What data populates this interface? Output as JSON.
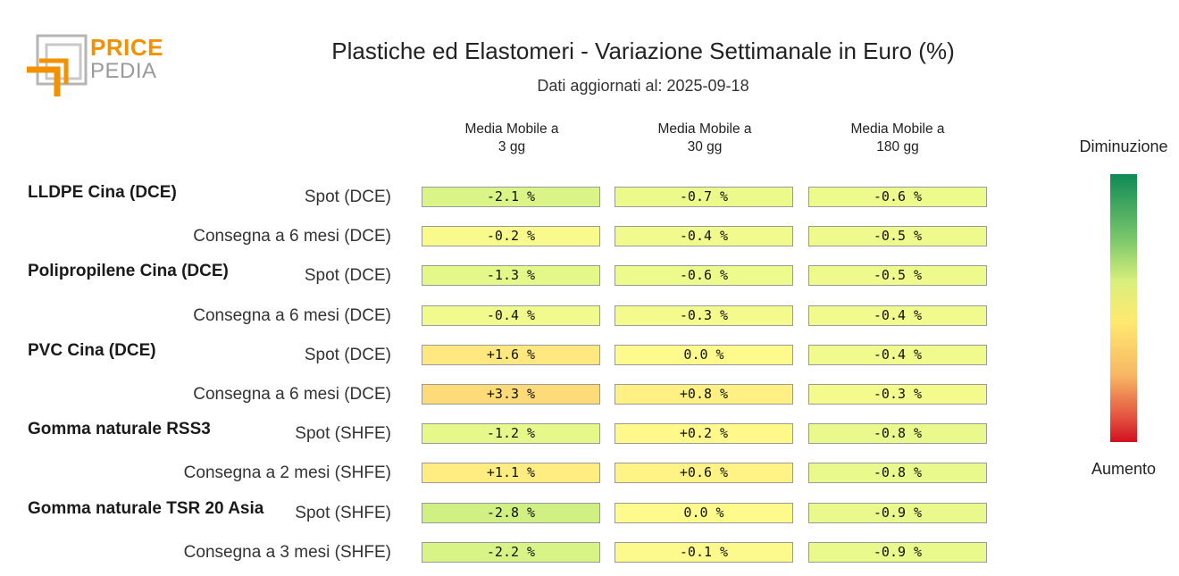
{
  "logo": {
    "line1": "PRICE",
    "line2": "PEDIA",
    "brand_color": "#f39200"
  },
  "chart_data": {
    "type": "table",
    "title": "Plastiche ed Elastomeri - Variazione Settimanale in Euro (%)",
    "subtitle": "Dati aggiornati al: 2025-09-18",
    "columns": [
      {
        "line1": "Media Mobile a",
        "line2": "3 gg"
      },
      {
        "line1": "Media Mobile a",
        "line2": "30 gg"
      },
      {
        "line1": "Media Mobile a",
        "line2": "180 gg"
      }
    ],
    "groups": [
      {
        "name": "LLDPE Cina (DCE)",
        "rows": [
          {
            "label": "Spot (DCE)",
            "values": [
              -2.1,
              -0.7,
              -0.6
            ],
            "texts": [
              "-2.1 %",
              "-0.7 %",
              "-0.6 %"
            ]
          },
          {
            "label": "Consegna a 6 mesi (DCE)",
            "values": [
              -0.2,
              -0.4,
              -0.5
            ],
            "texts": [
              "-0.2 %",
              "-0.4 %",
              "-0.5 %"
            ]
          }
        ]
      },
      {
        "name": "Polipropilene Cina (DCE)",
        "rows": [
          {
            "label": "Spot (DCE)",
            "values": [
              -1.3,
              -0.6,
              -0.5
            ],
            "texts": [
              "-1.3 %",
              "-0.6 %",
              "-0.5 %"
            ]
          },
          {
            "label": "Consegna a 6 mesi (DCE)",
            "values": [
              -0.4,
              -0.3,
              -0.4
            ],
            "texts": [
              "-0.4 %",
              "-0.3 %",
              "-0.4 %"
            ]
          }
        ]
      },
      {
        "name": "PVC Cina (DCE)",
        "rows": [
          {
            "label": "Spot (DCE)",
            "values": [
              1.6,
              0.0,
              -0.4
            ],
            "texts": [
              "+1.6 %",
              "0.0 %",
              "-0.4 %"
            ]
          },
          {
            "label": "Consegna a 6 mesi (DCE)",
            "values": [
              3.3,
              0.8,
              -0.3
            ],
            "texts": [
              "+3.3 %",
              "+0.8 %",
              "-0.3 %"
            ]
          }
        ]
      },
      {
        "name": "Gomma naturale RSS3",
        "rows": [
          {
            "label": "Spot (SHFE)",
            "values": [
              -1.2,
              0.2,
              -0.8
            ],
            "texts": [
              "-1.2 %",
              "+0.2 %",
              "-0.8 %"
            ]
          },
          {
            "label": "Consegna a 2 mesi (SHFE)",
            "values": [
              1.1,
              0.6,
              -0.8
            ],
            "texts": [
              "+1.1 %",
              "+0.6 %",
              "-0.8 %"
            ]
          }
        ]
      },
      {
        "name": "Gomma naturale TSR 20 Asia",
        "rows": [
          {
            "label": "Spot (SHFE)",
            "values": [
              -2.8,
              0.0,
              -0.9
            ],
            "texts": [
              "-2.8 %",
              "0.0 %",
              "-0.9 %"
            ]
          },
          {
            "label": "Consegna a 3 mesi (SHFE)",
            "values": [
              -2.2,
              -0.1,
              -0.9
            ],
            "texts": [
              "-2.2 %",
              "-0.1 %",
              "-0.9 %"
            ]
          }
        ]
      }
    ],
    "legend": {
      "top": "Diminuzione",
      "bottom": "Aumento"
    }
  }
}
